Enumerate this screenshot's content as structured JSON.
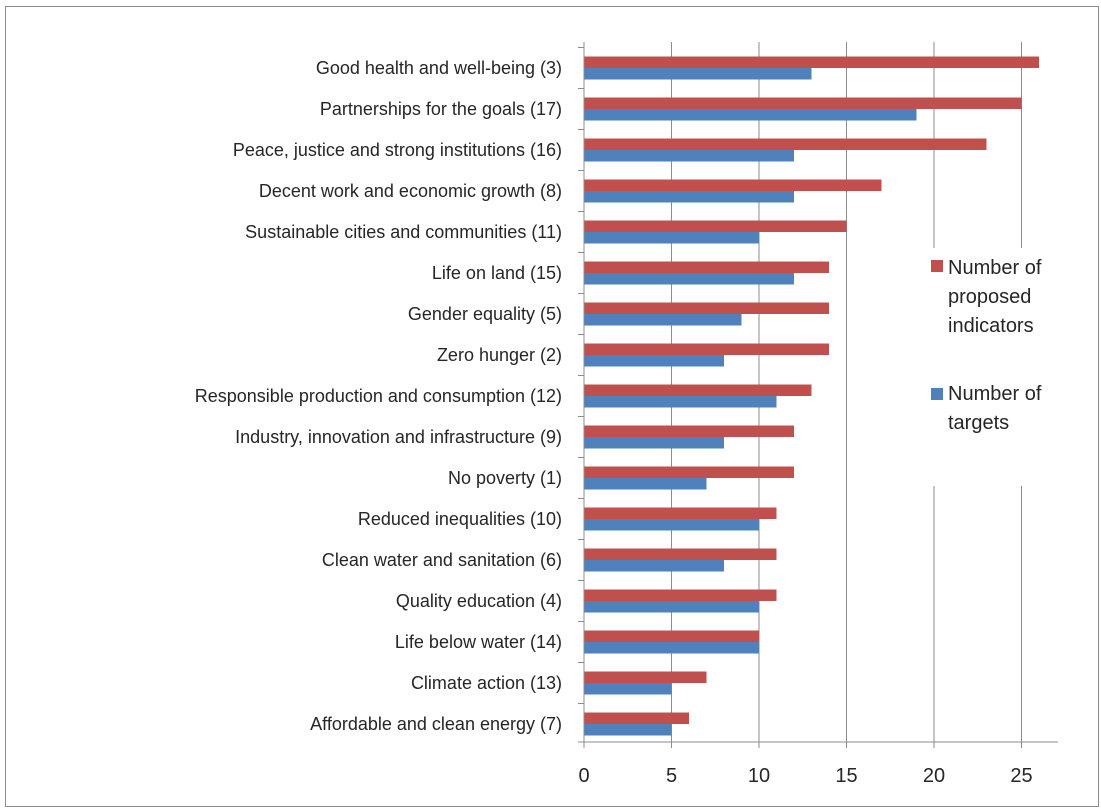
{
  "chart_data": {
    "type": "bar",
    "orientation": "horizontal",
    "title": "",
    "xlabel": "",
    "ylabel": "",
    "xlim": [
      0,
      27
    ],
    "xticks": [
      0,
      5,
      10,
      15,
      20,
      25
    ],
    "grid": "vertical",
    "legend_position": "right",
    "categories": [
      "Good health and well-being (3)",
      "Partnerships for the goals (17)",
      "Peace, justice and strong institutions (16)",
      "Decent work and economic growth (8)",
      "Sustainable cities and communities (11)",
      "Life on land (15)",
      "Gender equality (5)",
      "Zero hunger (2)",
      "Responsible production and consumption (12)",
      "Industry, innovation and infrastructure (9)",
      "No poverty (1)",
      "Reduced inequalities (10)",
      "Clean water and sanitation (6)",
      "Quality education (4)",
      "Life below water (14)",
      "Climate action (13)",
      "Affordable and clean energy (7)"
    ],
    "series": [
      {
        "name": "Number of proposed indicators",
        "legend_lines": [
          "Number of",
          "proposed",
          "indicators"
        ],
        "color": "#c0504d",
        "values": [
          26,
          25,
          23,
          17,
          15,
          14,
          14,
          14,
          13,
          12,
          12,
          11,
          11,
          11,
          10,
          7,
          6
        ]
      },
      {
        "name": "Number of targets",
        "legend_lines": [
          "Number of",
          "targets"
        ],
        "color": "#4f81bd",
        "values": [
          13,
          19,
          12,
          12,
          10,
          12,
          9,
          8,
          11,
          8,
          7,
          10,
          8,
          10,
          10,
          5,
          5
        ]
      }
    ]
  }
}
